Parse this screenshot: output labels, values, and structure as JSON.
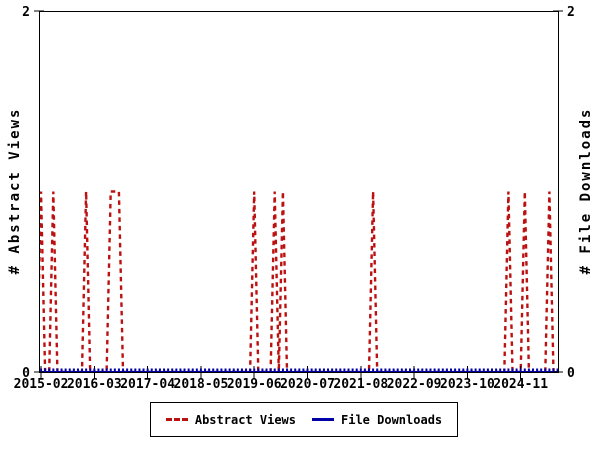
{
  "axes": {
    "left_label": "# Abstract Views",
    "right_label": "# File Downloads",
    "y_top": "2",
    "y_bottom": "0"
  },
  "legend": {
    "abstract_views": "Abstract Views",
    "file_downloads": "File Downloads"
  },
  "chart_data": {
    "type": "line",
    "title": "",
    "xlabel": "",
    "ylabel_left": "# Abstract Views",
    "ylabel_right": "# File Downloads",
    "ylim": [
      0,
      2
    ],
    "y_tick_values": [
      0,
      2
    ],
    "y_tick_labels": [
      "0",
      "2"
    ],
    "x_axis_unit": "month",
    "x_first_month": "2015-01",
    "n_months": 128,
    "x_range_months": [
      0.5,
      127.1
    ],
    "x_tick_months": [
      1,
      14,
      27,
      40,
      53,
      66,
      79,
      92,
      105,
      118
    ],
    "x_tick_labels": [
      "2015-02",
      "2016-03",
      "2017-04",
      "2018-05",
      "2019-06",
      "2020-07",
      "2021-08",
      "2022-09",
      "2023-10",
      "2024-11"
    ],
    "grid": false,
    "legend_position": "below-center",
    "series": [
      {
        "name": "Abstract Views",
        "color": "#bb1111",
        "style": "dashed",
        "marker": "none",
        "baseline_value": 0,
        "spike_value": 1,
        "spike_month_indices": [
          1,
          4,
          12,
          18,
          19,
          20,
          53,
          58,
          60,
          82,
          115,
          119,
          125
        ],
        "spike_months": [
          "2015-02",
          "2015-05",
          "2016-01",
          "2016-07",
          "2016-08",
          "2016-09",
          "2019-06",
          "2019-11",
          "2020-01",
          "2021-11",
          "2024-08",
          "2024-12",
          "2025-06"
        ]
      },
      {
        "name": "File Downloads",
        "color": "#0000a6",
        "style": "solid",
        "marker": "vertical-tick",
        "values_constant": 0
      }
    ]
  }
}
